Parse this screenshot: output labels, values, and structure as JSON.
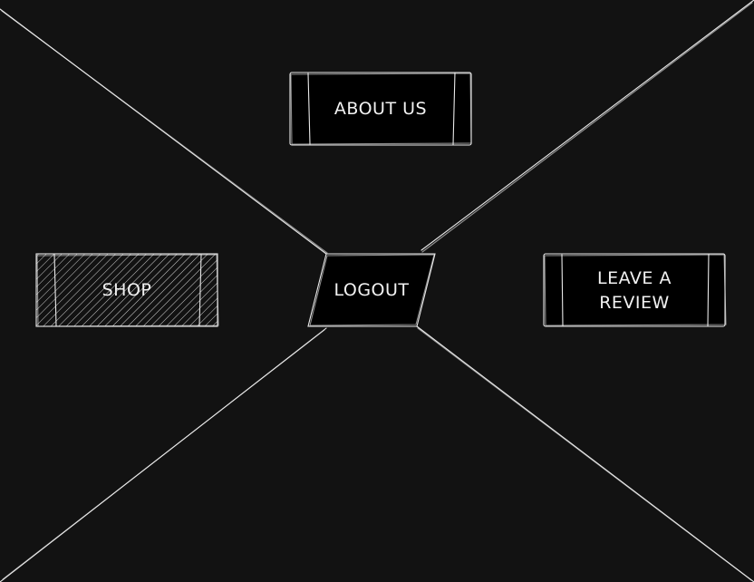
{
  "theme": {
    "background": "#121212",
    "node_fill": "#000000",
    "stroke": "#eaeaea",
    "text": "#f2f2f2",
    "hatch": "#cfcfcf"
  },
  "nodes": {
    "about": {
      "label": "ABOUT US"
    },
    "shop": {
      "label": "SHOP"
    },
    "logout": {
      "label": "LOGOUT"
    },
    "review": {
      "label_line1": "LEAVE A",
      "label_line2": "REVIEW"
    }
  }
}
